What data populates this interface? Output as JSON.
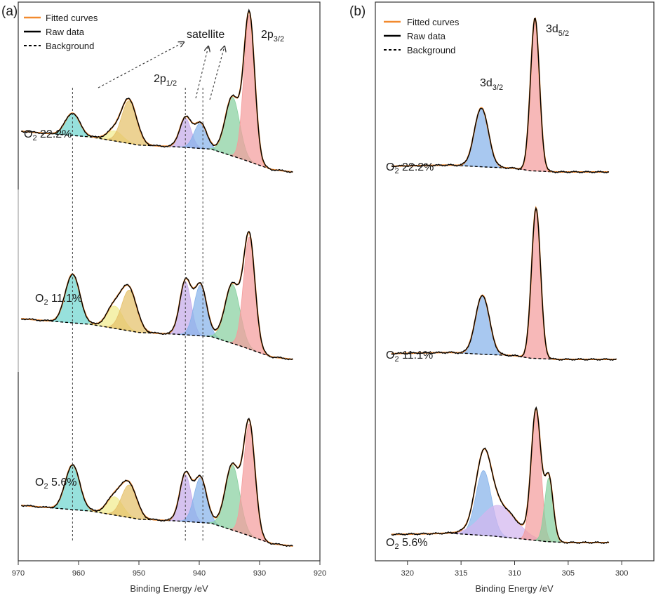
{
  "colors": {
    "fitted": "#f28a2e",
    "raw": "#000000",
    "background": "#000000",
    "cyan": "#6fd6cf",
    "yellow": "#f1eb8e",
    "tan": "#e5c06a",
    "purple": "#c5abe9",
    "blue": "#87b3ea",
    "green": "#88d0a0",
    "red": "#f49c9c",
    "violet": "#d2b6ee"
  },
  "chart_data": [
    {
      "type": "line",
      "panel_label": "(a)",
      "xlabel": "Binding Energy /eV",
      "xlim": [
        970,
        920
      ],
      "x_ticks": [
        970,
        960,
        950,
        940,
        930,
        920
      ],
      "legend": {
        "position": "top-left",
        "entries": [
          "Fitted curves",
          "Raw data",
          "Background"
        ]
      },
      "annotations": {
        "satellite": "satellite",
        "p12_main": "2p",
        "p12_sub": "1/2",
        "p32_main": "2p",
        "p32_sub": "3/2"
      },
      "guide_lines_x": [
        961.0,
        942.3,
        939.4
      ],
      "traces": [
        {
          "sample_main": "O",
          "sample_sub": "2",
          "sample_value": " 22.2%",
          "range": [
            969.5,
            924.5
          ],
          "background": [
            [
              969.5,
              1.0
            ],
            [
              963,
              0.92
            ],
            [
              958,
              0.86
            ],
            [
              950,
              0.66
            ],
            [
              944,
              0.62
            ],
            [
              938,
              0.56
            ],
            [
              933,
              0.32
            ],
            [
              928,
              0.06
            ],
            [
              924.5,
              0.0
            ]
          ],
          "peaks": [
            {
              "center": 961.0,
              "height": 0.55,
              "width": 1.2,
              "color": "cyan"
            },
            {
              "center": 954.0,
              "height": 0.25,
              "width": 1.3,
              "color": "yellow"
            },
            {
              "center": 951.6,
              "height": 1.05,
              "width": 1.25,
              "color": "tan"
            },
            {
              "center": 942.3,
              "height": 0.72,
              "width": 0.95,
              "color": "purple"
            },
            {
              "center": 939.8,
              "height": 0.62,
              "width": 1.05,
              "color": "blue"
            },
            {
              "center": 934.5,
              "height": 1.45,
              "width": 1.2,
              "color": "green"
            },
            {
              "center": 931.7,
              "height": 3.6,
              "width": 0.9,
              "color": "red"
            }
          ]
        },
        {
          "sample_main": "O",
          "sample_sub": "2",
          "sample_value": " 11.1%",
          "range": [
            969.5,
            924.5
          ],
          "background": [
            [
              969.5,
              1.0
            ],
            [
              963,
              0.92
            ],
            [
              958,
              0.86
            ],
            [
              950,
              0.66
            ],
            [
              944,
              0.62
            ],
            [
              938,
              0.56
            ],
            [
              933,
              0.32
            ],
            [
              928,
              0.06
            ],
            [
              924.5,
              0.0
            ]
          ],
          "peaks": [
            {
              "center": 961.0,
              "height": 1.2,
              "width": 1.2,
              "color": "cyan"
            },
            {
              "center": 954.0,
              "height": 0.55,
              "width": 1.3,
              "color": "yellow"
            },
            {
              "center": 951.6,
              "height": 1.0,
              "width": 1.25,
              "color": "tan"
            },
            {
              "center": 942.3,
              "height": 1.3,
              "width": 0.95,
              "color": "purple"
            },
            {
              "center": 939.8,
              "height": 1.25,
              "width": 1.05,
              "color": "blue"
            },
            {
              "center": 934.5,
              "height": 1.45,
              "width": 1.25,
              "color": "green"
            },
            {
              "center": 931.7,
              "height": 2.75,
              "width": 0.95,
              "color": "red"
            }
          ]
        },
        {
          "sample_main": "O",
          "sample_sub": "2",
          "sample_value": " 5.6%",
          "range": [
            969.5,
            924.5
          ],
          "background": [
            [
              969.5,
              1.0
            ],
            [
              963,
              0.92
            ],
            [
              958,
              0.86
            ],
            [
              950,
              0.66
            ],
            [
              944,
              0.62
            ],
            [
              938,
              0.56
            ],
            [
              933,
              0.32
            ],
            [
              928,
              0.06
            ],
            [
              924.5,
              0.0
            ]
          ],
          "peaks": [
            {
              "center": 961.0,
              "height": 1.1,
              "width": 1.2,
              "color": "cyan"
            },
            {
              "center": 954.0,
              "height": 0.45,
              "width": 1.3,
              "color": "yellow"
            },
            {
              "center": 951.6,
              "height": 0.8,
              "width": 1.25,
              "color": "tan"
            },
            {
              "center": 942.3,
              "height": 1.15,
              "width": 0.95,
              "color": "purple"
            },
            {
              "center": 939.8,
              "height": 1.1,
              "width": 1.05,
              "color": "blue"
            },
            {
              "center": 934.5,
              "height": 1.6,
              "width": 1.2,
              "color": "green"
            },
            {
              "center": 931.7,
              "height": 2.75,
              "width": 0.95,
              "color": "red"
            }
          ]
        }
      ]
    },
    {
      "type": "line",
      "panel_label": "(b)",
      "xlabel": "Binding Energy /eV",
      "xlim": [
        323,
        297
      ],
      "x_ticks": [
        320,
        315,
        310,
        305,
        300
      ],
      "legend": {
        "position": "top-left",
        "entries": [
          "Fitted curves",
          "Raw data",
          "Background"
        ]
      },
      "annotations": {
        "d32_main": "3d",
        "d32_sub": "3/2",
        "d52_main": "3d",
        "d52_sub": "5/2"
      },
      "traces": [
        {
          "sample_main": "O",
          "sample_sub": "2",
          "sample_value": " 22.2%",
          "range": [
            321.5,
            301.2
          ],
          "background": [
            [
              321.5,
              0.25
            ],
            [
              316,
              0.3
            ],
            [
              313,
              0.22
            ],
            [
              310,
              0.16
            ],
            [
              308.5,
              0.05
            ],
            [
              306,
              0.0
            ],
            [
              301.2,
              0.0
            ]
          ],
          "peaks": [
            {
              "center": 313.1,
              "height": 2.55,
              "width": 0.65,
              "color": "blue"
            },
            {
              "center": 308.1,
              "height": 6.6,
              "width": 0.42,
              "color": "red"
            }
          ]
        },
        {
          "sample_main": "O",
          "sample_sub": "2",
          "sample_value": " 11.1%",
          "range": [
            321.5,
            300.5
          ],
          "background": [
            [
              321.5,
              0.25
            ],
            [
              316,
              0.3
            ],
            [
              313,
              0.22
            ],
            [
              310,
              0.16
            ],
            [
              308.5,
              0.05
            ],
            [
              306,
              0.0
            ],
            [
              300.5,
              0.0
            ]
          ],
          "peaks": [
            {
              "center": 313.0,
              "height": 2.55,
              "width": 0.65,
              "color": "blue"
            },
            {
              "center": 308.0,
              "height": 6.5,
              "width": 0.42,
              "color": "red"
            }
          ]
        },
        {
          "sample_main": "O",
          "sample_sub": "2",
          "sample_value": " 5.6%",
          "range": [
            321.5,
            301.2
          ],
          "background": [
            [
              321.5,
              0.35
            ],
            [
              316,
              0.4
            ],
            [
              312,
              0.28
            ],
            [
              309,
              0.14
            ],
            [
              307,
              0.04
            ],
            [
              305,
              0.0
            ],
            [
              301.2,
              0.0
            ]
          ],
          "peaks": [
            {
              "center": 312.9,
              "height": 2.8,
              "width": 0.72,
              "color": "blue"
            },
            {
              "center": 311.5,
              "height": 1.35,
              "width": 1.6,
              "color": "violet"
            },
            {
              "center": 308.0,
              "height": 5.55,
              "width": 0.45,
              "color": "red"
            },
            {
              "center": 306.8,
              "height": 2.75,
              "width": 0.4,
              "color": "green"
            }
          ]
        }
      ]
    }
  ]
}
